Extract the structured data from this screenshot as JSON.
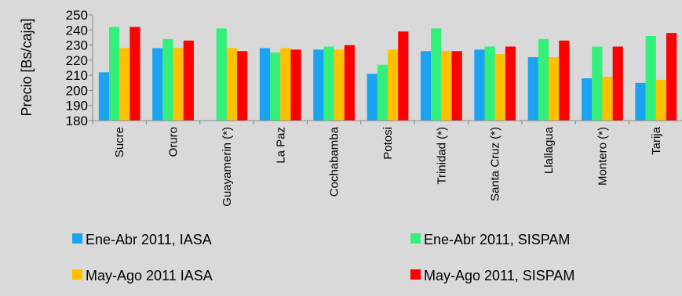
{
  "chart_data": {
    "type": "bar",
    "title": "",
    "xlabel": "",
    "ylabel": "Precio [Bs/caja]",
    "ylim": [
      180,
      250
    ],
    "yticks": [
      180,
      190,
      200,
      210,
      220,
      230,
      240,
      250
    ],
    "grid": false,
    "legend_position": "bottom",
    "categories": [
      "Sucre",
      "Oruro",
      "Guayamerin (*)",
      "La Paz",
      "Cochabamba",
      "Potosi",
      "Trinidad (*)",
      "Santa Cruz (*)",
      "Llallagua",
      "Montero (*)",
      "Tarija"
    ],
    "series": [
      {
        "name": "Ene-Abr 2011, IASA",
        "color": "#1aa3f0",
        "values": [
          212,
          228,
          null,
          228,
          227,
          211,
          226,
          227,
          222,
          208,
          205
        ]
      },
      {
        "name": "Ene-Abr 2011, SISPAM",
        "color": "#33f07a",
        "values": [
          242,
          234,
          241,
          225,
          229,
          217,
          241,
          229,
          234,
          229,
          236
        ]
      },
      {
        "name": "May-Ago 2011 IASA",
        "color": "#ffc000",
        "values": [
          228,
          228,
          228,
          228,
          227,
          227,
          226,
          224,
          222,
          209,
          207
        ]
      },
      {
        "name": "May-Ago 2011, SISPAM",
        "color": "#ff0000",
        "values": [
          242,
          233,
          226,
          227,
          230,
          239,
          226,
          229,
          233,
          229,
          238
        ]
      }
    ]
  }
}
